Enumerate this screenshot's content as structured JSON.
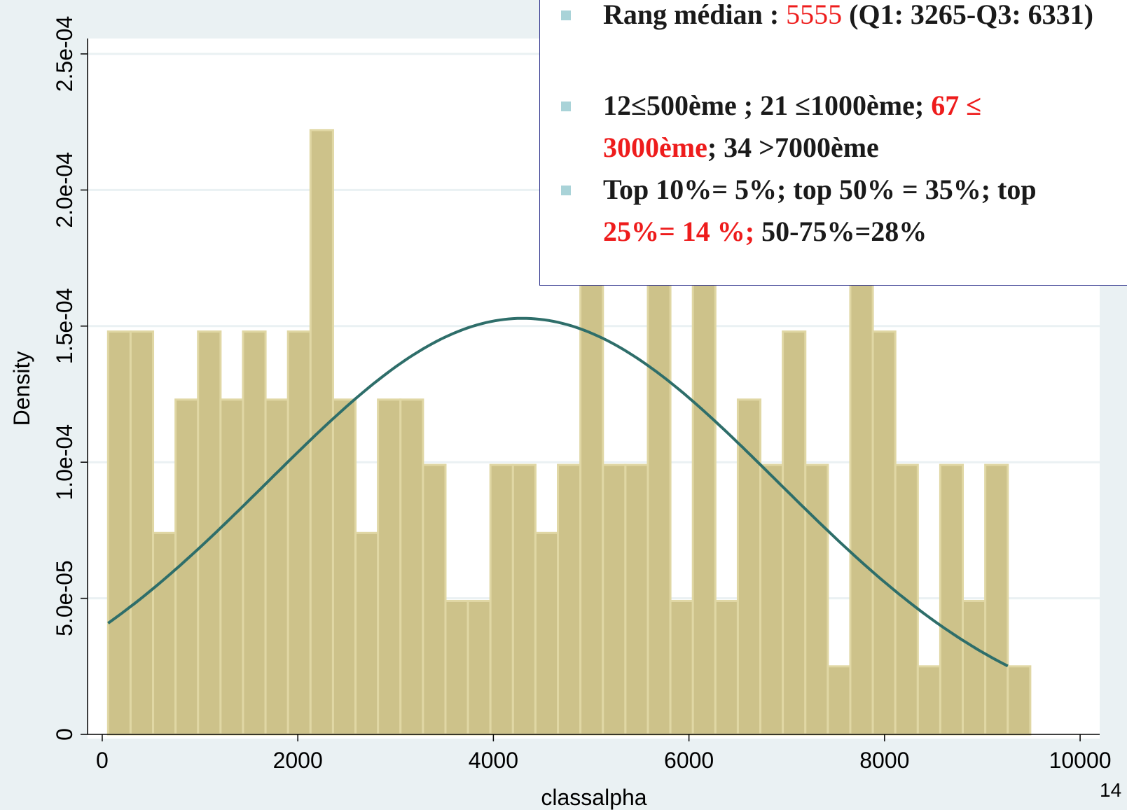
{
  "colors": {
    "background": "#eaf1f3",
    "plot_region": "#ffffff",
    "grid": "#eaf1f3",
    "bar_fill": "#cdc28a",
    "bar_edge": "#e0d7a4",
    "curve": "#2e6e6a",
    "highlight": "#ee1c1c",
    "box_border": "#2b2f8a",
    "bullet": "#a9d3d8"
  },
  "chart_data": {
    "type": "histogram",
    "xlabel": "classalpha",
    "ylabel": "Density",
    "xlim": [
      -150,
      10200
    ],
    "ylim": [
      0,
      0.00025
    ],
    "x_ticks": [
      {
        "value": 0,
        "label": "0"
      },
      {
        "value": 2000,
        "label": "2000"
      },
      {
        "value": 4000,
        "label": "4000"
      },
      {
        "value": 6000,
        "label": "6000"
      },
      {
        "value": 8000,
        "label": "8000"
      },
      {
        "value": 10000,
        "label": "10000"
      }
    ],
    "y_ticks": [
      {
        "value": 0,
        "label": "0"
      },
      {
        "value": 5e-05,
        "label": "5.0e-05"
      },
      {
        "value": 0.0001,
        "label": "1.0e-04"
      },
      {
        "value": 0.00015,
        "label": "1.5e-04"
      },
      {
        "value": 0.0002,
        "label": "2.0e-04"
      },
      {
        "value": 0.00025,
        "label": "2.5e-04"
      }
    ],
    "grid": true,
    "bins": {
      "start": 60,
      "width": 230,
      "densities": [
        0.000148,
        0.000148,
        7.4e-05,
        0.000123,
        0.000148,
        0.000123,
        0.000148,
        0.000123,
        0.000148,
        0.000222,
        0.000123,
        7.4e-05,
        0.000123,
        0.000123,
        9.9e-05,
        4.9e-05,
        4.9e-05,
        9.9e-05,
        9.9e-05,
        7.4e-05,
        9.9e-05,
        0.000173,
        9.9e-05,
        9.9e-05,
        0.000173,
        4.9e-05,
        0.000173,
        4.9e-05,
        0.000123,
        9.9e-05,
        0.000148,
        9.9e-05,
        2.5e-05,
        0.000173,
        0.000148,
        9.9e-05,
        2.5e-05,
        9.9e-05,
        4.9e-05,
        9.9e-05,
        2.5e-05
      ]
    },
    "normal_curve": {
      "mean": 4300,
      "sd": 2610,
      "x_range": [
        60,
        9260
      ]
    }
  },
  "annotation": {
    "line1_a": "Rang médian : ",
    "line1_b": "5555",
    "line1_c": " (Q1: 3265-Q3: 6331)",
    "line2_a": "12≤500ème ; 21 ≤1000ème; ",
    "line2_b": "67 ≤ 3000ème",
    "line2_c": "; 34 >7000ème",
    "line3_a": "Top 10%= 5%; top 50% = 35%; top ",
    "line3_b": "25%= 14 %;",
    "line3_c": " 50-75%=28%"
  },
  "page_number": "14"
}
